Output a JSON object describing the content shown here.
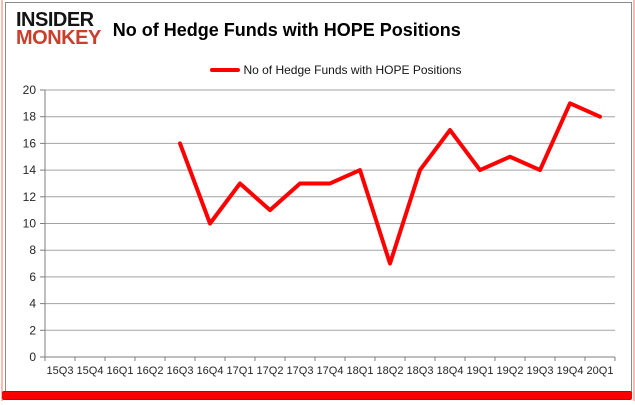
{
  "brand": {
    "line1": "INSIDER",
    "line2": "MONKEY",
    "color": "#c8402c"
  },
  "header": {
    "title": "No of Hedge Funds with HOPE Positions"
  },
  "legend": {
    "label": "No of Hedge Funds with HOPE Positions",
    "swatch_color": "#ff0000"
  },
  "chart_data": {
    "type": "line",
    "title": "No of Hedge Funds with HOPE Positions",
    "categories": [
      "15Q3",
      "15Q4",
      "16Q1",
      "16Q2",
      "16Q3",
      "16Q4",
      "17Q1",
      "17Q2",
      "17Q3",
      "17Q4",
      "18Q1",
      "18Q2",
      "18Q3",
      "18Q4",
      "19Q1",
      "19Q2",
      "19Q3",
      "19Q4",
      "20Q1"
    ],
    "series": [
      {
        "name": "No of Hedge Funds with HOPE Positions",
        "color": "#ff0000",
        "values": [
          null,
          null,
          null,
          null,
          16,
          10,
          13,
          11,
          13,
          13,
          14,
          7,
          14,
          17,
          14,
          15,
          14,
          19,
          18
        ]
      }
    ],
    "xlabel": "",
    "ylabel": "",
    "ylim": [
      0,
      20
    ],
    "ytick_step": 2,
    "grid": true,
    "legend_position": "top"
  },
  "colors": {
    "line": "#ff0000",
    "grid": "#a3a3a3",
    "axis": "#7f7f7f",
    "tick_text": "#262626",
    "container_border": "#8a8a8a",
    "accent_bar": "#fa0200",
    "edge_pink": "#f4bdb3"
  }
}
